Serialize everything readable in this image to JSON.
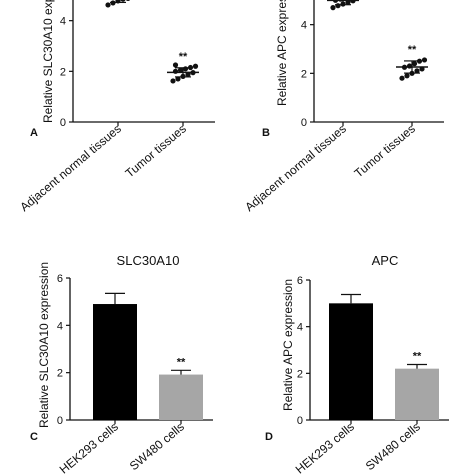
{
  "chart_data": [
    {
      "panel": "A",
      "type": "scatter",
      "title": "",
      "ylabel": "Relative SLC30A10 expression",
      "ylim": [
        0,
        6
      ],
      "yticks": [
        0,
        2,
        4
      ],
      "categories": [
        "Adjacent normal tissues",
        "Tumor tissues"
      ],
      "series": [
        {
          "values": [
            [
              4.62,
              4.7,
              4.78,
              4.85,
              4.88,
              4.92,
              4.95,
              5.0,
              5.05,
              5.1,
              5.15
            ],
            [
              1.62,
              1.7,
              1.8,
              1.88,
              1.95,
              2.0,
              2.05,
              2.1,
              2.15,
              2.2,
              2.25
            ]
          ]
        }
      ],
      "means": [
        4.9,
        1.96
      ],
      "errors": [
        0.18,
        0.18
      ],
      "significance": [
        "",
        "**"
      ]
    },
    {
      "panel": "B",
      "type": "scatter",
      "title": "",
      "ylabel": "Relative APC expression",
      "ylim": [
        0,
        6
      ],
      "yticks": [
        0,
        2,
        4
      ],
      "categories": [
        "Adjacent normal tissues",
        "Tumor tissues"
      ],
      "series": [
        {
          "values": [
            [
              4.7,
              4.78,
              4.85,
              4.92,
              4.98,
              5.0,
              5.05,
              5.1,
              5.15,
              5.2
            ],
            [
              1.8,
              1.9,
              2.0,
              2.1,
              2.18,
              2.25,
              2.3,
              2.4,
              2.5,
              2.55
            ]
          ]
        }
      ],
      "means": [
        5.0,
        2.26
      ],
      "errors": [
        0.18,
        0.25
      ],
      "significance": [
        "",
        "**"
      ]
    },
    {
      "panel": "C",
      "type": "bar",
      "title": "SLC30A10",
      "ylabel": "Relative SLC30A10 expression",
      "ylim": [
        0,
        6
      ],
      "yticks": [
        0,
        2,
        4,
        6
      ],
      "categories": [
        "HEK293 cells",
        "SW480 cells"
      ],
      "values": [
        4.9,
        1.92
      ],
      "errors": [
        0.45,
        0.18
      ],
      "colors": [
        "#000000",
        "#a6a6a6"
      ],
      "significance": [
        "",
        "**"
      ]
    },
    {
      "panel": "D",
      "type": "bar",
      "title": "APC",
      "ylabel": "Relative APC expression",
      "ylim": [
        0,
        6
      ],
      "yticks": [
        0,
        2,
        4,
        6
      ],
      "categories": [
        "HEK293 cells",
        "SW480 cells"
      ],
      "values": [
        5.0,
        2.2
      ],
      "errors": [
        0.38,
        0.18
      ],
      "colors": [
        "#000000",
        "#a6a6a6"
      ],
      "significance": [
        "",
        "**"
      ]
    }
  ]
}
